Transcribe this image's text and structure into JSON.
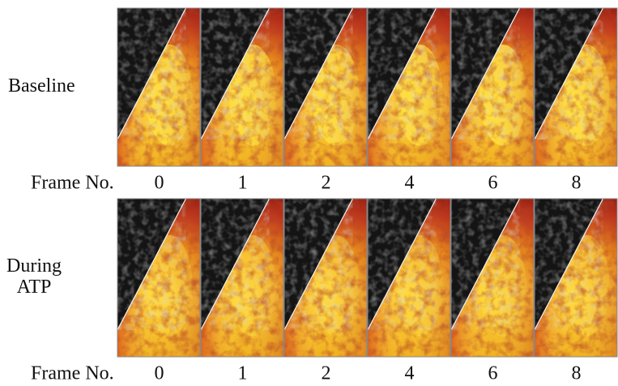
{
  "rows": [
    {
      "label": [
        "Baseline"
      ],
      "frame_label": "Frame No.",
      "frames": [
        "0",
        "1",
        "2",
        "4",
        "6",
        "8"
      ]
    },
    {
      "label": [
        "During",
        "ATP"
      ],
      "frame_label": "Frame No.",
      "frames": [
        "0",
        "1",
        "2",
        "4",
        "6",
        "8"
      ]
    }
  ]
}
